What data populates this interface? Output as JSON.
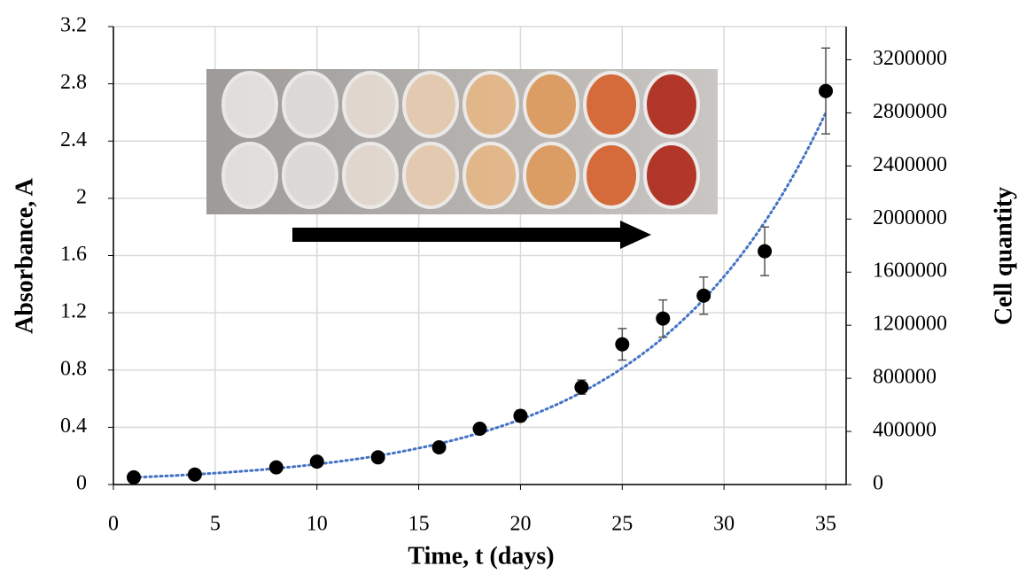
{
  "chart_data": {
    "type": "scatter",
    "x_label": "Time, t (days)",
    "y_label": "Absorbance, A",
    "y2_label": "Cell quantity",
    "x": [
      1,
      4,
      8,
      10,
      13,
      16,
      18,
      20,
      23,
      25,
      27,
      29,
      32,
      35
    ],
    "series": [
      {
        "color": "#000000",
        "values": [
          0.05,
          0.07,
          0.12,
          0.16,
          0.19,
          0.26,
          0.39,
          0.48,
          0.68,
          0.98,
          1.16,
          1.32,
          1.63,
          2.75
        ],
        "errors": [
          0.01,
          0.01,
          0.02,
          0.02,
          0.02,
          0.02,
          0.03,
          0.04,
          0.05,
          0.11,
          0.13,
          0.13,
          0.17,
          0.3
        ]
      }
    ],
    "trendline": {
      "type": "exponential",
      "a": 0.0445,
      "b": 0.1162,
      "from": 1,
      "to": 35,
      "color": "#4472c4"
    },
    "xlim": [
      0,
      36
    ],
    "xticks": [
      0,
      5,
      10,
      15,
      20,
      25,
      30,
      35
    ],
    "ylim": [
      0,
      3.2
    ],
    "yticks": [
      0,
      0.4,
      0.8,
      1.2,
      1.6,
      2,
      2.4,
      2.8,
      3.2
    ],
    "y2lim": [
      0,
      3450000
    ],
    "y2ticks": [
      0,
      400000,
      800000,
      1200000,
      1600000,
      2000000,
      2400000,
      2800000,
      3200000
    ],
    "grid": true
  }
}
